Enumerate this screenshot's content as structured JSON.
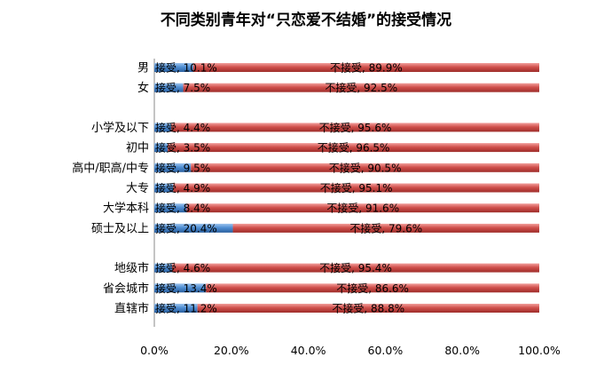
{
  "chart_data": {
    "type": "bar",
    "orientation": "horizontal",
    "stacked": true,
    "title": "不同类别青年对“只恋爱不结婚”的接受情况",
    "xlim": [
      0,
      100
    ],
    "ticks": [
      "0.0%",
      "20.0%",
      "40.0%",
      "60.0%",
      "80.0%",
      "100.0%"
    ],
    "grid": false,
    "legend": "none",
    "groups": [
      [
        "男",
        "女"
      ],
      [
        "小学及以下",
        "初中",
        "高中/职高/中专",
        "大专",
        "大学本科",
        "硕士及以上"
      ],
      [
        "地级市",
        "省会城市",
        "直辖市"
      ]
    ],
    "categories": [
      "男",
      "女",
      "小学及以下",
      "初中",
      "高中/职高/中专",
      "大专",
      "大学本科",
      "硕士及以上",
      "地级市",
      "省会城市",
      "直辖市"
    ],
    "series": [
      {
        "color": "#4a86c8",
        "values": [
          10.1,
          7.5,
          4.4,
          3.5,
          9.5,
          4.9,
          8.4,
          20.4,
          4.6,
          13.4,
          11.2
        ],
        "labels": [
          "接受, 10.1%",
          "接受, 7.5%",
          "接受, 4.4%",
          "接受, 3.5%",
          "接受, 9.5%",
          "接受, 4.9%",
          "接受, 8.4%",
          "接受, 20.4%",
          "接受, 4.6%",
          "接受, 13.4%",
          "接受, 11.2%"
        ]
      },
      {
        "color": "#c8413e",
        "values": [
          89.9,
          92.5,
          95.6,
          96.5,
          90.5,
          95.1,
          91.6,
          79.6,
          95.4,
          86.6,
          88.8
        ],
        "labels": [
          "不接受, 89.9%",
          "不接受, 92.5%",
          "不接受, 95.6%",
          "不接受, 96.5%",
          "不接受, 90.5%",
          "不接受, 95.1%",
          "不接受, 91.6%",
          "不接受, 79.6%",
          "不接受, 95.4%",
          "不接受, 86.6%",
          "不接受, 88.8%"
        ]
      }
    ]
  }
}
